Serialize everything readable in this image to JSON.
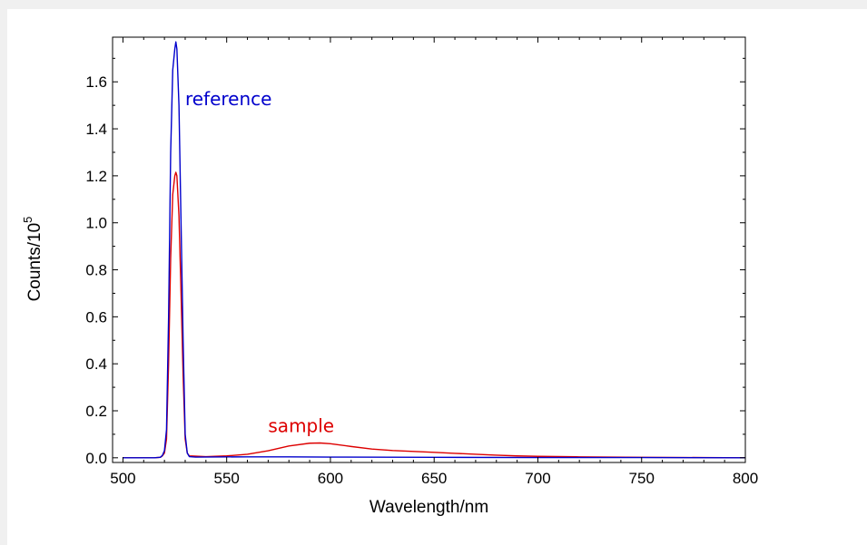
{
  "chart_data": {
    "type": "line",
    "xlabel": "Wavelength/nm",
    "ylabel_base": "Counts/10",
    "ylabel_exponent": "5",
    "xlim": [
      495,
      800
    ],
    "ylim": [
      -0.02,
      1.79
    ],
    "x_ticks": [
      500,
      550,
      600,
      650,
      700,
      750,
      800
    ],
    "y_ticks": [
      0.0,
      0.2,
      0.4,
      0.6,
      0.8,
      1.0,
      1.2,
      1.4,
      1.6
    ],
    "y_tick_labels": [
      "0.0",
      "0.2",
      "0.4",
      "0.6",
      "0.8",
      "1.0",
      "1.2",
      "1.4",
      "1.6"
    ],
    "x_tick_labels": [
      "500",
      "550",
      "600",
      "650",
      "700",
      "750",
      "800"
    ],
    "grid": false,
    "series": [
      {
        "name": "reference",
        "color": "#0000cc",
        "points": [
          [
            500,
            0.0
          ],
          [
            515,
            0.0
          ],
          [
            518,
            0.002
          ],
          [
            519,
            0.01
          ],
          [
            520,
            0.03
          ],
          [
            521,
            0.12
          ],
          [
            522,
            0.6
          ],
          [
            523,
            1.3
          ],
          [
            524,
            1.65
          ],
          [
            525,
            1.74
          ],
          [
            525.5,
            1.77
          ],
          [
            526,
            1.74
          ],
          [
            527,
            1.5
          ],
          [
            528,
            1.0
          ],
          [
            529,
            0.5
          ],
          [
            530,
            0.1
          ],
          [
            531,
            0.02
          ],
          [
            532,
            0.005
          ],
          [
            535,
            0.003
          ],
          [
            560,
            0.004
          ],
          [
            580,
            0.004
          ],
          [
            600,
            0.003
          ],
          [
            650,
            0.002
          ],
          [
            700,
            0.001
          ],
          [
            750,
            0.001
          ],
          [
            800,
            0.0
          ]
        ]
      },
      {
        "name": "sample",
        "color": "#dd0000",
        "points": [
          [
            500,
            0.0
          ],
          [
            515,
            0.0
          ],
          [
            518,
            0.002
          ],
          [
            519,
            0.008
          ],
          [
            520,
            0.02
          ],
          [
            521,
            0.08
          ],
          [
            522,
            0.4
          ],
          [
            523,
            0.85
          ],
          [
            524,
            1.12
          ],
          [
            525,
            1.2
          ],
          [
            525.5,
            1.215
          ],
          [
            526,
            1.2
          ],
          [
            527,
            1.03
          ],
          [
            528,
            0.7
          ],
          [
            529,
            0.35
          ],
          [
            530,
            0.08
          ],
          [
            531,
            0.02
          ],
          [
            532,
            0.008
          ],
          [
            540,
            0.005
          ],
          [
            550,
            0.008
          ],
          [
            560,
            0.015
          ],
          [
            570,
            0.03
          ],
          [
            580,
            0.05
          ],
          [
            590,
            0.062
          ],
          [
            595,
            0.063
          ],
          [
            600,
            0.06
          ],
          [
            610,
            0.048
          ],
          [
            620,
            0.037
          ],
          [
            630,
            0.031
          ],
          [
            640,
            0.027
          ],
          [
            650,
            0.023
          ],
          [
            660,
            0.019
          ],
          [
            670,
            0.015
          ],
          [
            680,
            0.011
          ],
          [
            690,
            0.008
          ],
          [
            700,
            0.006
          ],
          [
            720,
            0.004
          ],
          [
            750,
            0.002
          ],
          [
            780,
            0.001
          ],
          [
            800,
            0.0
          ]
        ]
      }
    ],
    "annotations": [
      {
        "text": "reference",
        "color": "#0000cc",
        "x": 530,
        "y": 1.5
      },
      {
        "text": "sample",
        "color": "#dd0000",
        "x": 570,
        "y": 0.11
      }
    ]
  }
}
